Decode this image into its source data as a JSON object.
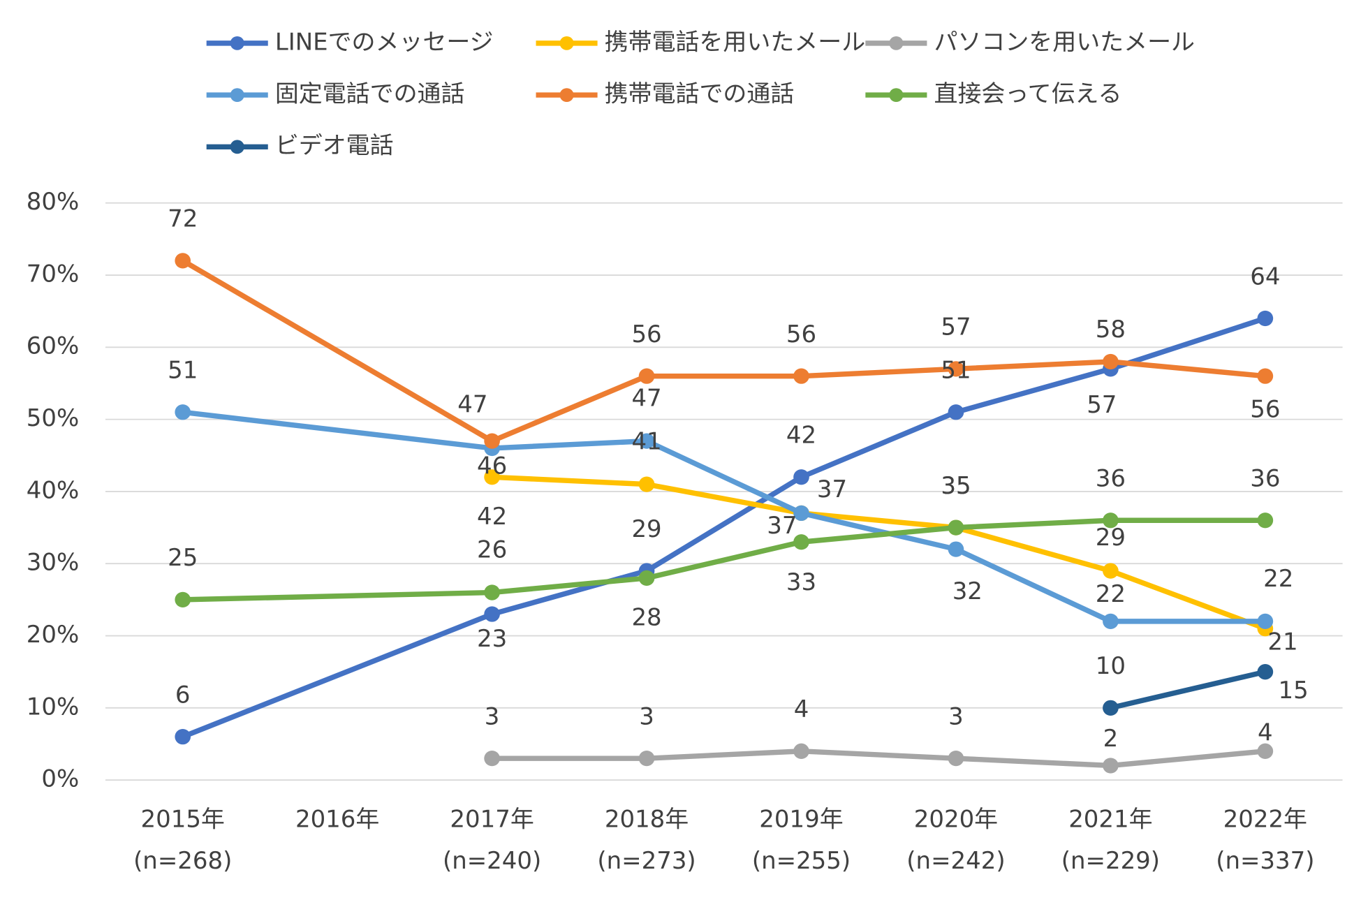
{
  "chart_data": {
    "type": "line",
    "categories": [
      "2015年",
      "2016年",
      "2017年",
      "2018年",
      "2019年",
      "2020年",
      "2021年",
      "2022年"
    ],
    "category_sublabels": [
      "(n=268)",
      null,
      "(n=240)",
      "(n=273)",
      "(n=255)",
      "(n=242)",
      "(n=229)",
      "(n=337)"
    ],
    "ylim": [
      0,
      80
    ],
    "yticks": [
      {
        "value": 0,
        "label": "0%"
      },
      {
        "value": 10,
        "label": "10%"
      },
      {
        "value": 20,
        "label": "20%"
      },
      {
        "value": 30,
        "label": "30%"
      },
      {
        "value": 40,
        "label": "40%"
      },
      {
        "value": 50,
        "label": "50%"
      },
      {
        "value": 60,
        "label": "60%"
      },
      {
        "value": 70,
        "label": "70%"
      },
      {
        "value": 80,
        "label": "80%"
      }
    ],
    "grid": true,
    "legend": "top",
    "connect_gaps": true,
    "series": [
      {
        "name": "LINEでのメッセージ",
        "color": "#4472c4",
        "values": [
          6,
          null,
          23,
          29,
          42,
          51,
          57,
          64
        ]
      },
      {
        "name": "携帯電話を用いたメール",
        "color": "#ffc000",
        "values": [
          null,
          null,
          42,
          41,
          37,
          35,
          29,
          21
        ]
      },
      {
        "name": "パソコンを用いたメール",
        "color": "#a5a5a5",
        "values": [
          null,
          null,
          3,
          3,
          4,
          3,
          2,
          4
        ]
      },
      {
        "name": "固定電話での通話",
        "color": "#5b9bd5",
        "values": [
          51,
          null,
          46,
          47,
          37,
          32,
          22,
          22
        ]
      },
      {
        "name": "携帯電話での通話",
        "color": "#ed7d31",
        "values": [
          72,
          null,
          47,
          56,
          56,
          57,
          58,
          56
        ]
      },
      {
        "name": "直接会って伝える",
        "color": "#70ad47",
        "values": [
          25,
          null,
          26,
          28,
          33,
          35,
          36,
          36
        ]
      },
      {
        "name": "ビデオ電話",
        "color": "#255e91",
        "values": [
          null,
          null,
          null,
          null,
          null,
          null,
          10,
          15
        ]
      }
    ]
  }
}
